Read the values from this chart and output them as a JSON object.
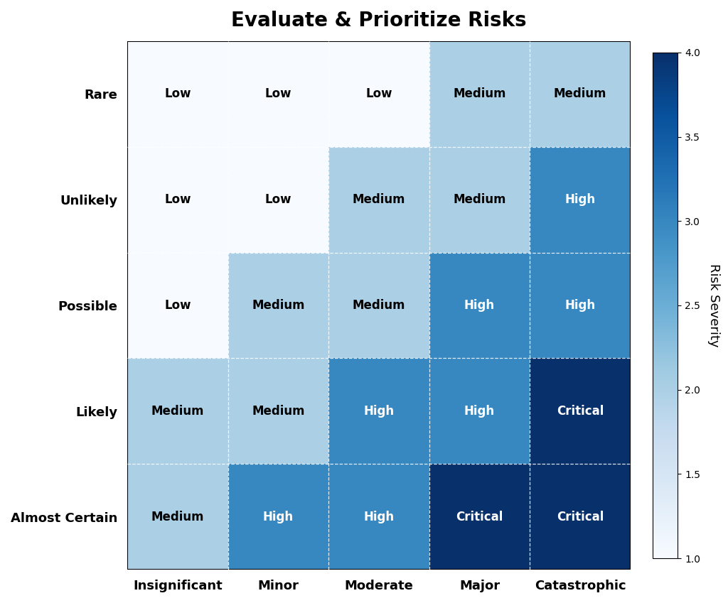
{
  "title": "Evaluate & Prioritize Risks",
  "x_labels": [
    "Insignificant",
    "Minor",
    "Moderate",
    "Major",
    "Catastrophic"
  ],
  "y_labels": [
    "Rare",
    "Unlikely",
    "Possible",
    "Likely",
    "Almost Certain"
  ],
  "matrix": [
    [
      1,
      1,
      1,
      2,
      2
    ],
    [
      1,
      1,
      2,
      2,
      3
    ],
    [
      1,
      2,
      2,
      3,
      3
    ],
    [
      2,
      2,
      3,
      3,
      4
    ],
    [
      2,
      3,
      3,
      4,
      4
    ]
  ],
  "cell_labels": [
    [
      "Low",
      "Low",
      "Low",
      "Medium",
      "Medium"
    ],
    [
      "Low",
      "Low",
      "Medium",
      "Medium",
      "High"
    ],
    [
      "Low",
      "Medium",
      "Medium",
      "High",
      "High"
    ],
    [
      "Medium",
      "Medium",
      "High",
      "High",
      "Critical"
    ],
    [
      "Medium",
      "High",
      "High",
      "Critical",
      "Critical"
    ]
  ],
  "colorbar_label": "Risk Severity",
  "vmin": 1,
  "vmax": 4,
  "title_fontsize": 20,
  "label_fontsize": 13,
  "cell_fontsize": 12,
  "colorbar_ticks": [
    1.0,
    1.5,
    2.0,
    2.5,
    3.0,
    3.5,
    4.0
  ],
  "cmap": "Blues",
  "figsize": [
    10.24,
    8.49
  ],
  "dpi": 100,
  "background_color": "white",
  "text_color_light": "black",
  "text_color_dark": "white",
  "text_threshold": 2.5
}
